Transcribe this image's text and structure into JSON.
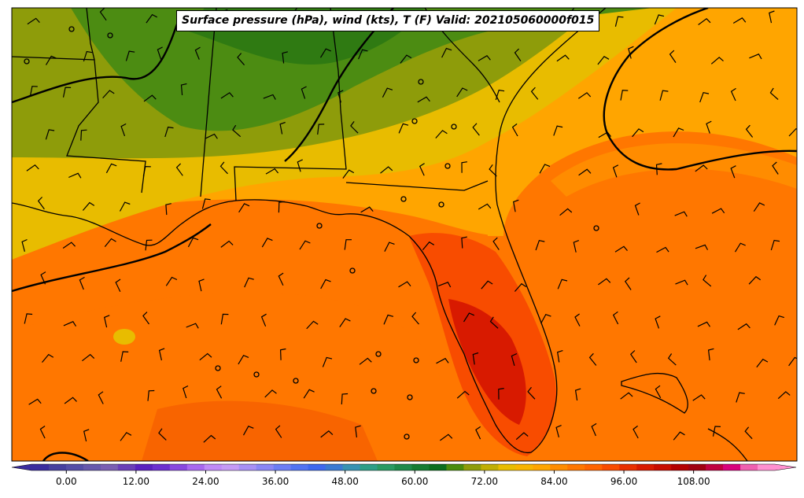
{
  "title": "Surface pressure (hPa), wind (kts), T (F) Valid: 202105060000f015",
  "colorbar": {
    "ticks": [
      "0.00",
      "12.00",
      "24.00",
      "36.00",
      "48.00",
      "60.00",
      "72.00",
      "84.00",
      "96.00",
      "108.00"
    ],
    "tick_values": [
      0,
      12,
      24,
      36,
      48,
      60,
      72,
      84,
      96,
      108
    ],
    "min": -6,
    "max": 122,
    "step": 3,
    "colors": [
      "#3a2c9e",
      "#46409f",
      "#544ea7",
      "#6658ac",
      "#7a5eb2",
      "#6a3fb8",
      "#5a21c0",
      "#6c2fd0",
      "#8848e0",
      "#a868f0",
      "#c08af8",
      "#c59af6",
      "#a790f5",
      "#8a86f5",
      "#6c7df4",
      "#5273f2",
      "#3e68ee",
      "#3a7ad2",
      "#3892b2",
      "#2e9e86",
      "#2a9a62",
      "#1e8a4a",
      "#157c32",
      "#0b6e1e",
      "#4a8c0c",
      "#8e9c0a",
      "#c0ae04",
      "#e8bc00",
      "#f8b400",
      "#ffa500",
      "#ff8c00",
      "#ff7700",
      "#ff6400",
      "#f84c00",
      "#e83000",
      "#d81a00",
      "#c80c00",
      "#b40000",
      "#a00010",
      "#c00040",
      "#d8007c",
      "#f060b0",
      "#ff90d0"
    ]
  },
  "map_colors": {
    "land_cool": "#4c8c12",
    "land_mild": "#8e9c0a",
    "yellow": "#e8bc00",
    "orange_light": "#ffa500",
    "orange": "#ff8c00",
    "orange_deep": "#ff7700",
    "red_orange": "#f84c00",
    "red": "#e83000"
  }
}
